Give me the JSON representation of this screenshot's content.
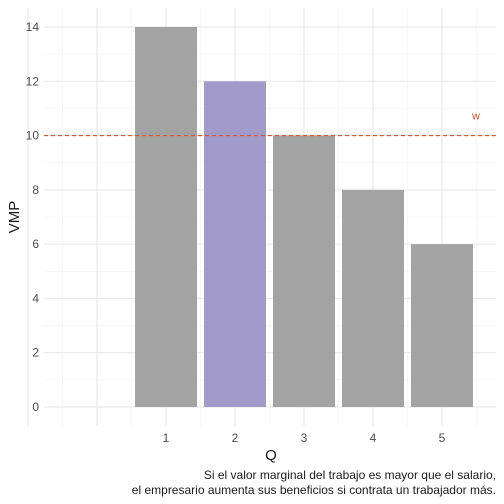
{
  "chart_data": {
    "type": "bar",
    "categories": [
      "1",
      "2",
      "3",
      "4",
      "5"
    ],
    "values": [
      14,
      12,
      10,
      8,
      6
    ],
    "highlight_category": "2",
    "xlabel": "Q",
    "ylabel": "VMP",
    "ylim": [
      0,
      14
    ],
    "yticks": [
      0,
      2,
      4,
      6,
      8,
      10,
      12,
      14
    ],
    "grid": true,
    "reference_line": {
      "value": 10,
      "label": "w",
      "style": "dashed",
      "color": "#e0552a"
    },
    "colors": {
      "bar": "#a3a3a3",
      "highlight": "#a29bc9"
    }
  },
  "caption": {
    "line1": "Si el valor marginal del trabajo es mayor que el salario,",
    "line2": "el empresario aumenta sus beneficios si contrata un trabajador más."
  }
}
